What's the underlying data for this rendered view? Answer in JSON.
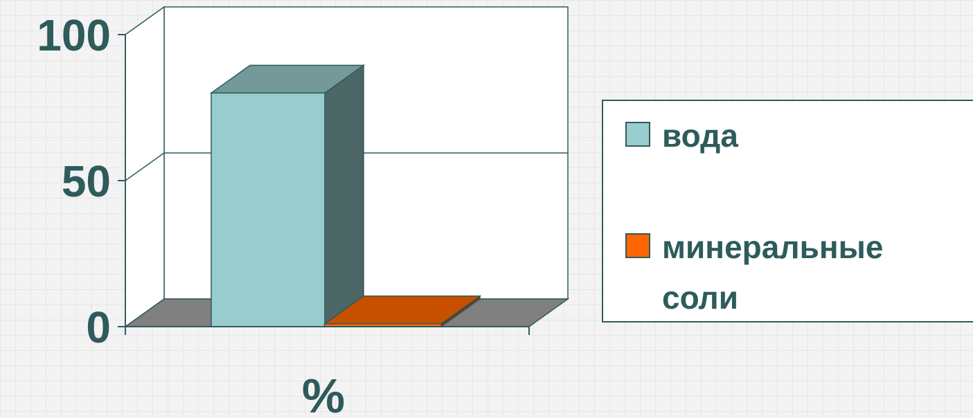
{
  "chart_data": {
    "type": "bar",
    "style": "3d-clustered-column",
    "categories": [
      "%"
    ],
    "xlabel": "%",
    "ylim": [
      0,
      100
    ],
    "yticks": [
      0,
      50,
      100
    ],
    "grid": true,
    "legend_position": "right",
    "series": [
      {
        "name": "вода",
        "values": [
          80
        ],
        "color": "#99cccc"
      },
      {
        "name": "минеральные соли",
        "values": [
          1
        ],
        "color": "#ff6600"
      }
    ]
  },
  "colors": {
    "text": "#2e5b5b",
    "axis": "#2e5b5b",
    "floor": "#808080",
    "wall": "#ffffff"
  }
}
